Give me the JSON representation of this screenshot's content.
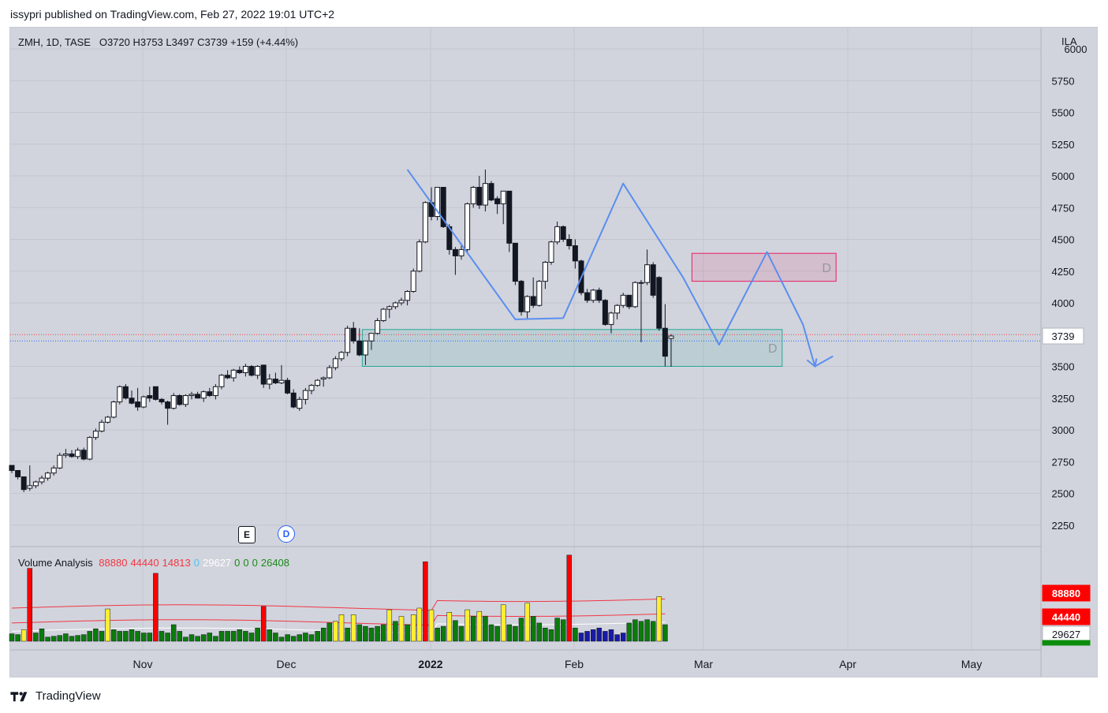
{
  "header": {
    "published": "issypri published on TradingView.com, Feb 27, 2022 19:01 UTC+2"
  },
  "legend": {
    "symbol": "ZMH, 1D, TASE",
    "ohlc": "O3720  H3753  L3497  C3739  +159 (+4.44%)"
  },
  "price_axis": {
    "unit_label": "ILA",
    "ticks": [
      2250,
      2500,
      2750,
      3000,
      3250,
      3500,
      4000,
      4250,
      4500,
      4750,
      5000,
      5250,
      5500,
      5750,
      6000
    ],
    "current_price": "3739"
  },
  "time_axis": {
    "labels": [
      {
        "text": "Nov",
        "bold": false
      },
      {
        "text": "Dec",
        "bold": false
      },
      {
        "text": "2022",
        "bold": true
      },
      {
        "text": "Feb",
        "bold": false
      },
      {
        "text": "Mar",
        "bold": false
      },
      {
        "text": "Apr",
        "bold": false
      },
      {
        "text": "May",
        "bold": false
      }
    ]
  },
  "event_markers": {
    "earnings": "E",
    "dividend": "D"
  },
  "annotations": {
    "zone_upper_label": "D",
    "zone_lower_label": "D"
  },
  "volume_legend": {
    "title": "Volume Analysis",
    "values": [
      {
        "text": "88880",
        "color": "#f23645"
      },
      {
        "text": "44440",
        "color": "#f23645"
      },
      {
        "text": "14813",
        "color": "#f23645"
      },
      {
        "text": "0",
        "color": "#4fc3f7"
      },
      {
        "text": "29627",
        "color": "#ffffff"
      },
      {
        "text": "0",
        "color": "#1b8a1b"
      },
      {
        "text": "0",
        "color": "#1b8a1b"
      },
      {
        "text": "0",
        "color": "#1b8a1b"
      },
      {
        "text": "26408",
        "color": "#1b8a1b"
      }
    ]
  },
  "volume_axis_badges": [
    {
      "text": "88880",
      "bg": "#ff0000",
      "fg": "#ffffff"
    },
    {
      "text": "44440",
      "bg": "#ff0000",
      "fg": "#ffffff"
    },
    {
      "text": "29627",
      "bg": "#ffffff",
      "fg": "#131722"
    },
    {
      "text": "26408",
      "bg": "#0c8c0c",
      "fg": "#ffffff"
    }
  ],
  "footer": {
    "brand": "TradingView"
  },
  "colors": {
    "bg": "#d1d4dc",
    "grid": "#c3c6ce",
    "pattern": "#5b8ef0",
    "zone_red": "#e91e63",
    "zone_green": "#26a69a"
  },
  "chart_data": {
    "type": "candlestick",
    "symbol": "ZMH",
    "interval": "1D",
    "ylim": [
      2100,
      6000
    ],
    "candles": [
      [
        2720,
        2720,
        2660,
        2680
      ],
      [
        2680,
        2680,
        2610,
        2630
      ],
      [
        2630,
        2630,
        2510,
        2530
      ],
      [
        2540,
        2720,
        2520,
        2560
      ],
      [
        2560,
        2600,
        2540,
        2590
      ],
      [
        2590,
        2640,
        2570,
        2620
      ],
      [
        2620,
        2670,
        2600,
        2660
      ],
      [
        2660,
        2720,
        2640,
        2700
      ],
      [
        2700,
        2820,
        2690,
        2800
      ],
      [
        2800,
        2850,
        2780,
        2810
      ],
      [
        2810,
        2840,
        2780,
        2790
      ],
      [
        2790,
        2860,
        2770,
        2840
      ],
      [
        2840,
        2860,
        2760,
        2770
      ],
      [
        2770,
        2950,
        2760,
        2940
      ],
      [
        2940,
        3010,
        2920,
        2990
      ],
      [
        2990,
        3080,
        2980,
        3060
      ],
      [
        3060,
        3110,
        3050,
        3100
      ],
      [
        3100,
        3230,
        3090,
        3220
      ],
      [
        3220,
        3350,
        3200,
        3340
      ],
      [
        3340,
        3360,
        3240,
        3250
      ],
      [
        3250,
        3310,
        3200,
        3210
      ],
      [
        3220,
        3330,
        3150,
        3180
      ],
      [
        3180,
        3270,
        3170,
        3260
      ],
      [
        3270,
        3340,
        3220,
        3250
      ],
      [
        3340,
        3340,
        3230,
        3240
      ],
      [
        3240,
        3250,
        3200,
        3220
      ],
      [
        3220,
        3230,
        3040,
        3170
      ],
      [
        3170,
        3290,
        3160,
        3270
      ],
      [
        3270,
        3280,
        3190,
        3200
      ],
      [
        3200,
        3280,
        3180,
        3270
      ],
      [
        3270,
        3300,
        3240,
        3280
      ],
      [
        3280,
        3300,
        3250,
        3250
      ],
      [
        3250,
        3310,
        3220,
        3300
      ],
      [
        3300,
        3330,
        3260,
        3270
      ],
      [
        3270,
        3360,
        3240,
        3340
      ],
      [
        3340,
        3440,
        3320,
        3430
      ],
      [
        3430,
        3470,
        3400,
        3410
      ],
      [
        3410,
        3480,
        3380,
        3470
      ],
      [
        3470,
        3500,
        3440,
        3450
      ],
      [
        3450,
        3520,
        3420,
        3500
      ],
      [
        3500,
        3510,
        3420,
        3430
      ],
      [
        3430,
        3510,
        3400,
        3500
      ],
      [
        3510,
        3510,
        3330,
        3360
      ],
      [
        3360,
        3440,
        3320,
        3400
      ],
      [
        3400,
        3450,
        3360,
        3370
      ],
      [
        3370,
        3510,
        3360,
        3390
      ],
      [
        3390,
        3410,
        3280,
        3290
      ],
      [
        3290,
        3320,
        3170,
        3180
      ],
      [
        3170,
        3260,
        3150,
        3240
      ],
      [
        3240,
        3330,
        3200,
        3310
      ],
      [
        3310,
        3360,
        3280,
        3350
      ],
      [
        3350,
        3400,
        3340,
        3390
      ],
      [
        3400,
        3420,
        3340,
        3410
      ],
      [
        3410,
        3510,
        3400,
        3490
      ],
      [
        3490,
        3580,
        3470,
        3560
      ],
      [
        3560,
        3620,
        3540,
        3610
      ],
      [
        3610,
        3820,
        3580,
        3800
      ],
      [
        3800,
        3850,
        3680,
        3700
      ],
      [
        3700,
        3800,
        3580,
        3590
      ],
      [
        3590,
        3700,
        3510,
        3700
      ],
      [
        3700,
        3760,
        3630,
        3760
      ],
      [
        3760,
        3880,
        3750,
        3860
      ],
      [
        3860,
        3960,
        3850,
        3950
      ],
      [
        3950,
        3980,
        3880,
        3970
      ],
      [
        3970,
        4010,
        3950,
        4000
      ],
      [
        4000,
        4040,
        3980,
        4020
      ],
      [
        4020,
        4100,
        3980,
        4090
      ],
      [
        4090,
        4270,
        4080,
        4250
      ],
      [
        4250,
        4500,
        4240,
        4480
      ],
      [
        4480,
        4800,
        4470,
        4790
      ],
      [
        4790,
        4910,
        4650,
        4680
      ],
      [
        4680,
        4910,
        4650,
        4910
      ],
      [
        4910,
        4910,
        4590,
        4600
      ],
      [
        4600,
        4620,
        4380,
        4420
      ],
      [
        4420,
        4440,
        4220,
        4370
      ],
      [
        4370,
        4450,
        4340,
        4420
      ],
      [
        4420,
        4790,
        4400,
        4780
      ],
      [
        4780,
        4920,
        4750,
        4910
      ],
      [
        4910,
        5000,
        4740,
        4770
      ],
      [
        4770,
        5050,
        4720,
        4940
      ],
      [
        4940,
        4960,
        4800,
        4810
      ],
      [
        4820,
        4840,
        4700,
        4780
      ],
      [
        4780,
        4880,
        4620,
        4880
      ],
      [
        4880,
        4880,
        4400,
        4470
      ],
      [
        4470,
        4470,
        4140,
        4170
      ],
      [
        4170,
        4180,
        3900,
        3930
      ],
      [
        3930,
        4060,
        3880,
        4050
      ],
      [
        4050,
        4200,
        3960,
        3980
      ],
      [
        3980,
        4180,
        3970,
        4170
      ],
      [
        4170,
        4330,
        4110,
        4320
      ],
      [
        4320,
        4490,
        4300,
        4480
      ],
      [
        4480,
        4640,
        4460,
        4600
      ],
      [
        4600,
        4610,
        4480,
        4500
      ],
      [
        4500,
        4540,
        4420,
        4450
      ],
      [
        4450,
        4500,
        4270,
        4330
      ],
      [
        4330,
        4340,
        4060,
        4080
      ],
      [
        4080,
        4110,
        4000,
        4020
      ],
      [
        4020,
        4110,
        4000,
        4100
      ],
      [
        4100,
        4120,
        4000,
        4020
      ],
      [
        4020,
        4030,
        3820,
        3830
      ],
      [
        3830,
        3930,
        3760,
        3920
      ],
      [
        3920,
        3990,
        3870,
        3980
      ],
      [
        3980,
        4080,
        3960,
        4060
      ],
      [
        4060,
        4060,
        3950,
        3970
      ],
      [
        3970,
        4170,
        3960,
        4160
      ],
      [
        4160,
        4180,
        3690,
        4160
      ],
      [
        4160,
        4420,
        4140,
        4300
      ],
      [
        4300,
        4320,
        4040,
        4060
      ],
      [
        4200,
        4210,
        3780,
        3800
      ],
      [
        3800,
        3990,
        3500,
        3580
      ],
      [
        3720,
        3753,
        3497,
        3739
      ]
    ],
    "pattern_points": [
      [
        66,
        5050
      ],
      [
        84,
        3870
      ],
      [
        92,
        3880
      ],
      [
        102,
        4940
      ],
      [
        112,
        4200
      ],
      [
        118,
        3670
      ],
      [
        126,
        4400
      ],
      [
        132,
        3830
      ],
      [
        134,
        3500
      ],
      [
        137,
        3580
      ]
    ],
    "zones": [
      {
        "label": "D",
        "color": "red",
        "x0": 114,
        "x1": 137,
        "y0": 4170,
        "y1": 4390
      },
      {
        "label": "D",
        "color": "green",
        "x0": 59,
        "x1": 128,
        "y0": 3500,
        "y1": 3790
      }
    ],
    "volume_series": [
      {
        "v": 9000,
        "c": "g"
      },
      {
        "v": 8000,
        "c": "g"
      },
      {
        "v": 14000,
        "c": "y"
      },
      {
        "v": 88000,
        "c": "r"
      },
      {
        "v": 10000,
        "c": "g"
      },
      {
        "v": 15000,
        "c": "g"
      },
      {
        "v": 5000,
        "c": "g"
      },
      {
        "v": 6000,
        "c": "g"
      },
      {
        "v": 7000,
        "c": "g"
      },
      {
        "v": 9000,
        "c": "g"
      },
      {
        "v": 6000,
        "c": "g"
      },
      {
        "v": 7000,
        "c": "g"
      },
      {
        "v": 8000,
        "c": "g"
      },
      {
        "v": 12000,
        "c": "g"
      },
      {
        "v": 15000,
        "c": "g"
      },
      {
        "v": 12000,
        "c": "g"
      },
      {
        "v": 39000,
        "c": "y"
      },
      {
        "v": 14000,
        "c": "g"
      },
      {
        "v": 12000,
        "c": "g"
      },
      {
        "v": 12000,
        "c": "g"
      },
      {
        "v": 14000,
        "c": "g"
      },
      {
        "v": 12000,
        "c": "g"
      },
      {
        "v": 10000,
        "c": "g"
      },
      {
        "v": 10000,
        "c": "g"
      },
      {
        "v": 82000,
        "c": "r"
      },
      {
        "v": 12000,
        "c": "g"
      },
      {
        "v": 10000,
        "c": "g"
      },
      {
        "v": 20000,
        "c": "g"
      },
      {
        "v": 12000,
        "c": "g"
      },
      {
        "v": 5000,
        "c": "g"
      },
      {
        "v": 8000,
        "c": "g"
      },
      {
        "v": 6000,
        "c": "g"
      },
      {
        "v": 8000,
        "c": "g"
      },
      {
        "v": 10000,
        "c": "g"
      },
      {
        "v": 6000,
        "c": "g"
      },
      {
        "v": 12000,
        "c": "g"
      },
      {
        "v": 12000,
        "c": "g"
      },
      {
        "v": 12000,
        "c": "g"
      },
      {
        "v": 14000,
        "c": "g"
      },
      {
        "v": 12000,
        "c": "g"
      },
      {
        "v": 10000,
        "c": "g"
      },
      {
        "v": 16000,
        "c": "g"
      },
      {
        "v": 42000,
        "c": "r"
      },
      {
        "v": 14000,
        "c": "g"
      },
      {
        "v": 10000,
        "c": "g"
      },
      {
        "v": 5000,
        "c": "g"
      },
      {
        "v": 8000,
        "c": "g"
      },
      {
        "v": 6000,
        "c": "g"
      },
      {
        "v": 8000,
        "c": "g"
      },
      {
        "v": 10000,
        "c": "g"
      },
      {
        "v": 8000,
        "c": "g"
      },
      {
        "v": 12000,
        "c": "g"
      },
      {
        "v": 16000,
        "c": "g"
      },
      {
        "v": 22000,
        "c": "g"
      },
      {
        "v": 24000,
        "c": "y"
      },
      {
        "v": 32000,
        "c": "y"
      },
      {
        "v": 16000,
        "c": "g"
      },
      {
        "v": 32000,
        "c": "y"
      },
      {
        "v": 20000,
        "c": "g"
      },
      {
        "v": 18000,
        "c": "g"
      },
      {
        "v": 16000,
        "c": "g"
      },
      {
        "v": 18000,
        "c": "g"
      },
      {
        "v": 20000,
        "c": "g"
      },
      {
        "v": 38000,
        "c": "y"
      },
      {
        "v": 24000,
        "c": "g"
      },
      {
        "v": 30000,
        "c": "y"
      },
      {
        "v": 20000,
        "c": "g"
      },
      {
        "v": 32000,
        "c": "y"
      },
      {
        "v": 40000,
        "c": "y"
      },
      {
        "v": 96000,
        "c": "r"
      },
      {
        "v": 38000,
        "c": "y"
      },
      {
        "v": 16000,
        "c": "g"
      },
      {
        "v": 18000,
        "c": "g"
      },
      {
        "v": 35000,
        "c": "y"
      },
      {
        "v": 25000,
        "c": "g"
      },
      {
        "v": 18000,
        "c": "g"
      },
      {
        "v": 38000,
        "c": "y"
      },
      {
        "v": 30000,
        "c": "g"
      },
      {
        "v": 36000,
        "c": "y"
      },
      {
        "v": 30000,
        "c": "g"
      },
      {
        "v": 20000,
        "c": "g"
      },
      {
        "v": 18000,
        "c": "g"
      },
      {
        "v": 44000,
        "c": "y"
      },
      {
        "v": 20000,
        "c": "g"
      },
      {
        "v": 18000,
        "c": "g"
      },
      {
        "v": 28000,
        "c": "g"
      },
      {
        "v": 46000,
        "c": "y"
      },
      {
        "v": 30000,
        "c": "g"
      },
      {
        "v": 22000,
        "c": "g"
      },
      {
        "v": 16000,
        "c": "g"
      },
      {
        "v": 14000,
        "c": "g"
      },
      {
        "v": 28000,
        "c": "g"
      },
      {
        "v": 26000,
        "c": "g"
      },
      {
        "v": 104000,
        "c": "r"
      },
      {
        "v": 16000,
        "c": "g"
      },
      {
        "v": 10000,
        "c": "b"
      },
      {
        "v": 12000,
        "c": "b"
      },
      {
        "v": 14000,
        "c": "b"
      },
      {
        "v": 16000,
        "c": "b"
      },
      {
        "v": 12000,
        "c": "b"
      },
      {
        "v": 14000,
        "c": "b"
      },
      {
        "v": 8000,
        "c": "b"
      },
      {
        "v": 10000,
        "c": "b"
      },
      {
        "v": 22000,
        "c": "g"
      },
      {
        "v": 26000,
        "c": "g"
      },
      {
        "v": 24000,
        "c": "g"
      },
      {
        "v": 26000,
        "c": "g"
      },
      {
        "v": 24000,
        "c": "g"
      },
      {
        "v": 54000,
        "c": "y"
      },
      {
        "v": 20000,
        "c": "g"
      }
    ]
  }
}
